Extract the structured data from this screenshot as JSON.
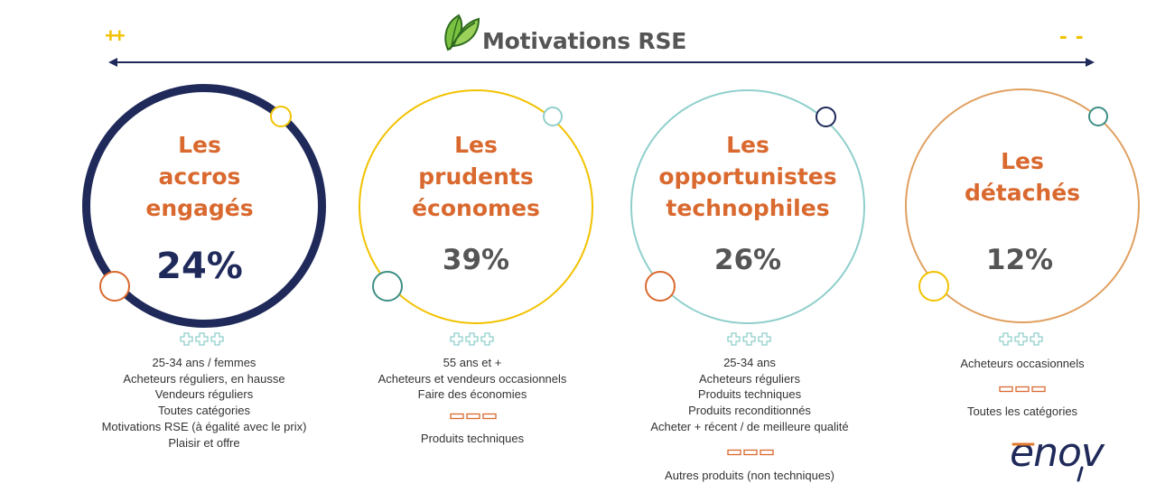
{
  "header": {
    "title": "Motivations RSE",
    "positive_marker": "++",
    "negative_marker": "- -"
  },
  "colors": {
    "accent_orange": "#d9692e",
    "navy": "#1f2a5a",
    "yellow": "#f2c200",
    "teal": "#4aa8a3",
    "light_teal": "#8fcfcc",
    "tan": "#e0a060",
    "text_gray": "#555555"
  },
  "segments": [
    {
      "title_lines": [
        "Les",
        "accros",
        "engagés"
      ],
      "percent": "24%",
      "plus_group": [
        "+",
        "+",
        "+"
      ],
      "details": [
        "25-34 ans / femmes",
        "Acheteurs réguliers, en hausse",
        "Vendeurs réguliers",
        "Toutes catégories",
        "Motivations RSE (à égalité avec le prix)",
        "Plaisir et offre"
      ],
      "minus_group": [],
      "minus_details": []
    },
    {
      "title_lines": [
        "Les",
        "prudents",
        "économes"
      ],
      "percent": "39%",
      "plus_group": [
        "+",
        "+",
        "+"
      ],
      "details": [
        "55 ans et +",
        "Acheteurs et vendeurs occasionnels",
        "Faire des économies"
      ],
      "minus_group": [
        "-",
        "-",
        "-"
      ],
      "minus_details": [
        "Produits techniques"
      ]
    },
    {
      "title_lines": [
        "Les",
        "opportunistes",
        "technophiles"
      ],
      "percent": "26%",
      "plus_group": [
        "+",
        "+",
        "+"
      ],
      "details": [
        "25-34 ans",
        "Acheteurs réguliers",
        "Produits techniques",
        "Produits reconditionnés",
        "Acheter + récent / de meilleure qualité"
      ],
      "minus_group": [
        "-",
        "-",
        "-"
      ],
      "minus_details": [
        "Autres produits (non techniques)"
      ]
    },
    {
      "title_lines": [
        "Les",
        "détachés"
      ],
      "percent": "12%",
      "plus_group": [
        "+",
        "+",
        "+"
      ],
      "details": [
        "Acheteurs occasionnels"
      ],
      "minus_group": [
        "-",
        "-",
        "-"
      ],
      "minus_details": [
        "Toutes les catégories"
      ]
    }
  ],
  "logo": {
    "text": "enov",
    "icon": "leaf-icon"
  }
}
